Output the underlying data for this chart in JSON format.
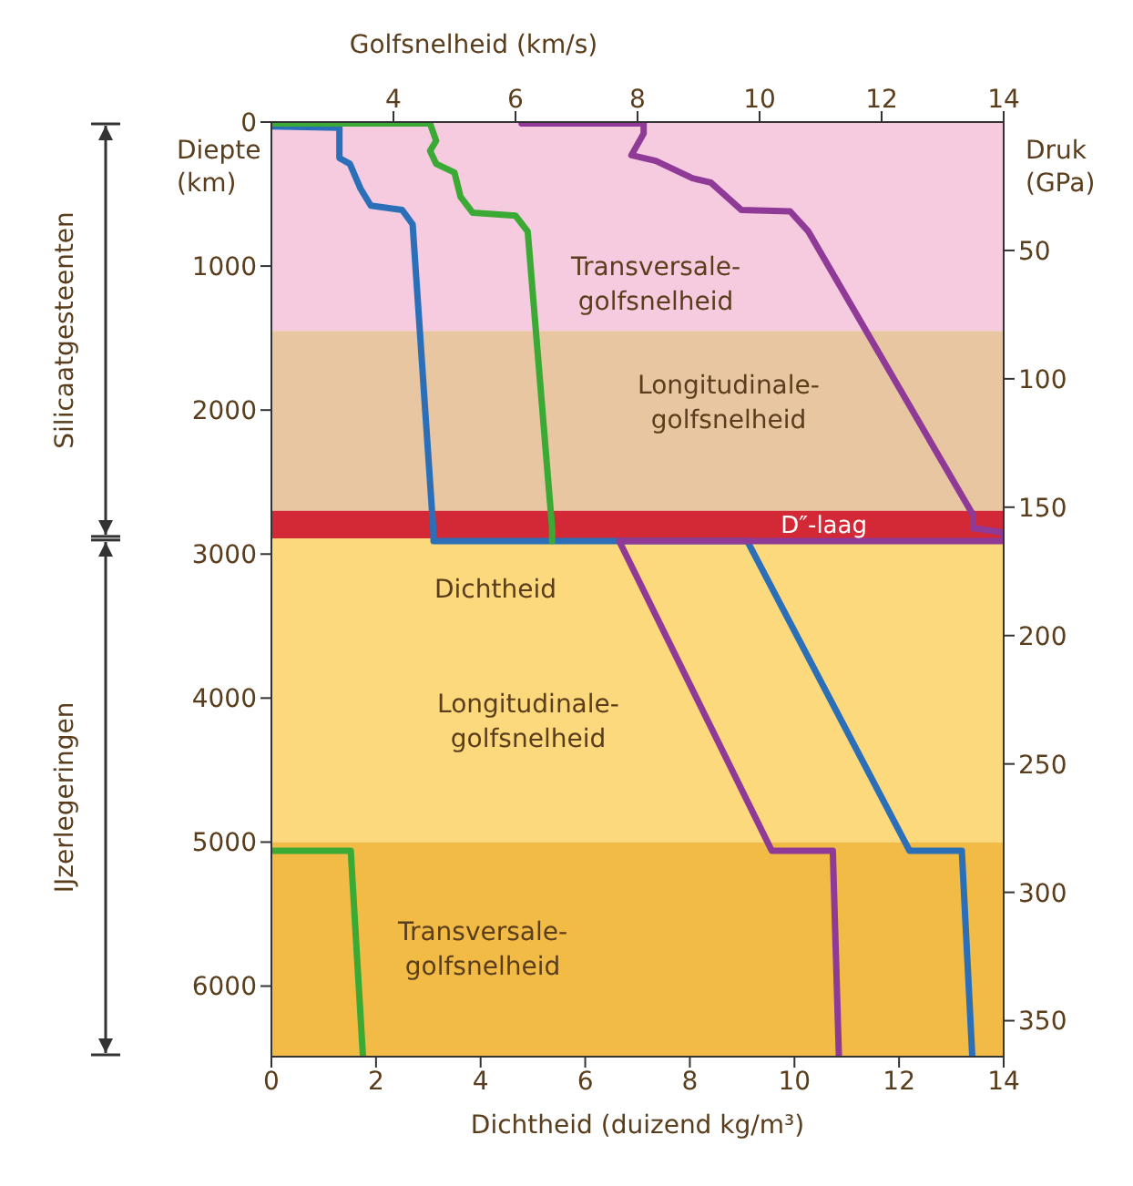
{
  "chart_data": {
    "type": "line",
    "xlabel": "Dichtheid (duizend kg/m³)",
    "x2label": "Golfsnelheid (km/s)",
    "ylabel": "Diepte (km)",
    "y2label": "Druk (GPa)",
    "xlim": [
      0,
      14
    ],
    "xticks": [
      0,
      2,
      4,
      6,
      8,
      10,
      12,
      14
    ],
    "x2lim": [
      2,
      14
    ],
    "x2ticks": [
      4,
      6,
      8,
      10,
      12,
      14
    ],
    "ylim": [
      6490,
      0
    ],
    "yticks": [
      0,
      1000,
      2000,
      3000,
      4000,
      5000,
      6000
    ],
    "y2lim": [
      364,
      0
    ],
    "y2ticks": [
      50,
      100,
      150,
      200,
      250,
      300,
      350
    ],
    "series": [
      {
        "color": "#2a6fb8",
        "x": [
          0,
          1.3,
          1.3,
          1.5,
          1.7,
          1.9,
          2.5,
          2.7,
          3.1,
          3.1,
          9.1,
          12.2,
          13.2,
          13.4
        ],
        "values": [
          30,
          40,
          250,
          290,
          460,
          580,
          610,
          710,
          2860,
          2910,
          2910,
          5060,
          5060,
          6490
        ]
      },
      {
        "color": "#3aaa35",
        "axis": "x2",
        "x": [
          2,
          4.6,
          4.7,
          4.6,
          4.7,
          5,
          5.1,
          5.3,
          6,
          6.2,
          6.6,
          6.6,
          null,
          2,
          3.3,
          3.5
        ],
        "values": [
          10,
          10,
          130,
          200,
          290,
          350,
          520,
          630,
          650,
          760,
          2820,
          2910,
          null,
          5060,
          5060,
          6490
        ]
      },
      {
        "color": "#8e3a96",
        "axis": "x2",
        "x": [
          6.1,
          8.1,
          8.1,
          7.9,
          8.3,
          8.9,
          9.2,
          9.7,
          10.5,
          10.8,
          13.5,
          13.5,
          14,
          14,
          7.7,
          10.2,
          11.2,
          11.3
        ],
        "values": [
          10,
          10,
          80,
          230,
          270,
          390,
          420,
          610,
          620,
          760,
          2730,
          2820,
          2850,
          2910,
          2910,
          5060,
          5060,
          6490
        ]
      }
    ],
    "bands": [
      {
        "axis": "y",
        "from": 0,
        "to": 1450,
        "color": "#f6cbe0"
      },
      {
        "axis": "y",
        "from": 1450,
        "to": 2700,
        "color": "#e8c6a2"
      },
      {
        "axis": "y",
        "from": 2700,
        "to": 2890,
        "color": "#d32836",
        "label": "D″-laag"
      },
      {
        "axis": "y",
        "from": 2890,
        "to": 5000,
        "color": "#fcd97c"
      },
      {
        "axis": "y",
        "from": 5000,
        "to": 6490,
        "color": "#f2bb45"
      }
    ],
    "annotations": [
      "Transversale- golfsnelheid",
      "Longitudinale- golfsnelheid",
      "Dichtheid",
      "Longitudinale- golfsnelheid",
      "Transversale- golfsnelheid",
      "Silicaatgesteenten",
      "IJzerlegeringen"
    ],
    "grid": false,
    "legend": false,
    "marker": "none"
  }
}
